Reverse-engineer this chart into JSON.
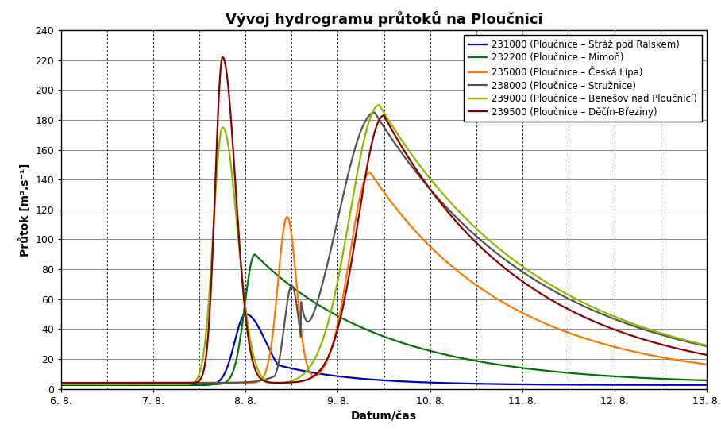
{
  "title": "Vývoj hydrogramu průtoků na Ploučnici",
  "xlabel": "Datum/čas",
  "ylabel": "Průtok [m³.s⁻¹]",
  "ylim": [
    0,
    240
  ],
  "yticks": [
    0,
    20,
    40,
    60,
    80,
    100,
    120,
    140,
    160,
    180,
    200,
    220,
    240
  ],
  "background_color": "#ffffff",
  "series": [
    {
      "id": "231000",
      "label": "231000 (Ploučnice – Stráž pod Ralskem)",
      "color": "#0000bb",
      "linewidth": 1.6
    },
    {
      "id": "232200",
      "label": "232200 (Ploučnice – Mimoň)",
      "color": "#007700",
      "linewidth": 1.6
    },
    {
      "id": "235000",
      "label": "235000 (Ploučnice – Česká Lípa)",
      "color": "#ff7700",
      "linewidth": 1.6
    },
    {
      "id": "238000",
      "label": "238000 (Ploučnice – Stružnice)",
      "color": "#555555",
      "linewidth": 1.6
    },
    {
      "id": "239000",
      "label": "239000 (Ploučnice – Benešov nad Ploučnicí)",
      "color": "#88bb00",
      "linewidth": 1.6
    },
    {
      "id": "239500",
      "label": "239500 (Ploučnice – Děčín-Březiny)",
      "color": "#880000",
      "linewidth": 1.6
    }
  ],
  "xtick_labels": [
    "6. 8.",
    "7. 8.",
    "8. 8.",
    "9. 8.",
    "10. 8.",
    "11. 8.",
    "12. 8.",
    "13. 8."
  ],
  "xtick_positions": [
    0,
    1,
    2,
    3,
    4,
    5,
    6,
    7
  ],
  "title_fontsize": 13,
  "axis_label_fontsize": 10,
  "tick_label_fontsize": 9,
  "legend_fontsize": 8.5
}
